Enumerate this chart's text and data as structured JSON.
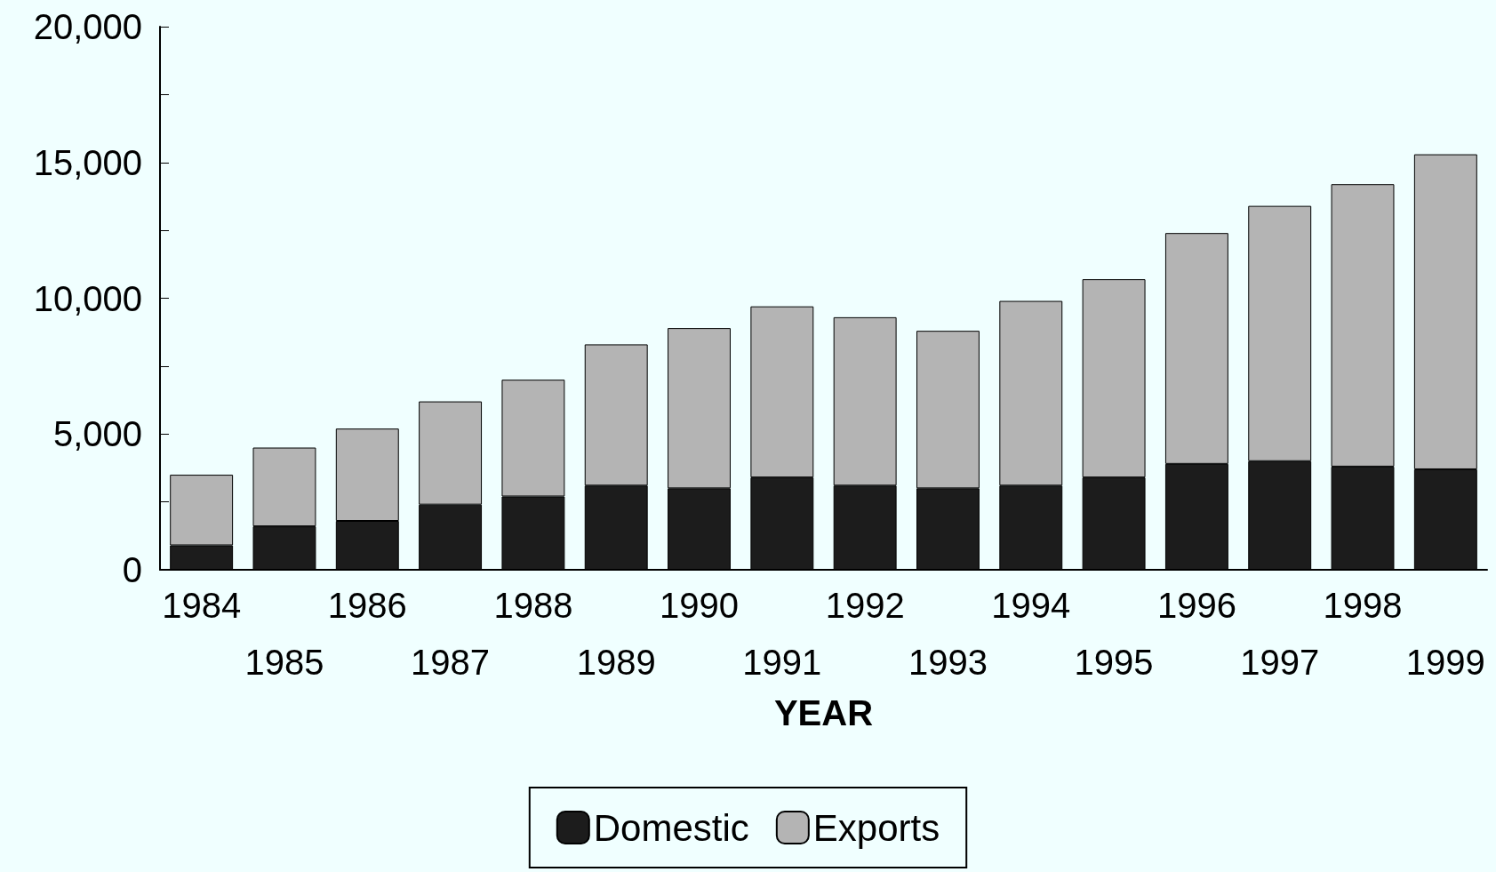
{
  "chart_data": {
    "type": "bar",
    "stacked": true,
    "xlabel": "YEAR",
    "categories": [
      "1984",
      "1985",
      "1986",
      "1987",
      "1988",
      "1989",
      "1990",
      "1991",
      "1992",
      "1993",
      "1994",
      "1995",
      "1996",
      "1997",
      "1998",
      "1999"
    ],
    "series": [
      {
        "name": "Domestic",
        "color": "#1c1c1c",
        "values": [
          900,
          1600,
          1800,
          2400,
          2700,
          3100,
          3000,
          3400,
          3100,
          3000,
          3100,
          3400,
          3900,
          4000,
          3800,
          3700
        ]
      },
      {
        "name": "Exports",
        "color": "#b4b4b4",
        "values": [
          2600,
          2900,
          3400,
          3800,
          4300,
          5200,
          5900,
          6300,
          6200,
          5800,
          6800,
          7300,
          8500,
          9400,
          10400,
          11600
        ]
      }
    ],
    "ylim": [
      0,
      20000
    ],
    "yticks": [
      0,
      {
        "value": 2500,
        "label": null
      },
      {
        "value": 5000,
        "label": "5,000"
      },
      {
        "value": 7500,
        "label": null
      },
      {
        "value": 10000,
        "label": "10,000"
      },
      {
        "value": 12500,
        "label": null
      },
      {
        "value": 15000,
        "label": "15,000"
      },
      {
        "value": 17500,
        "label": null
      },
      {
        "value": 20000,
        "label": "20,000"
      }
    ],
    "grid": false,
    "legend": "bottom"
  }
}
